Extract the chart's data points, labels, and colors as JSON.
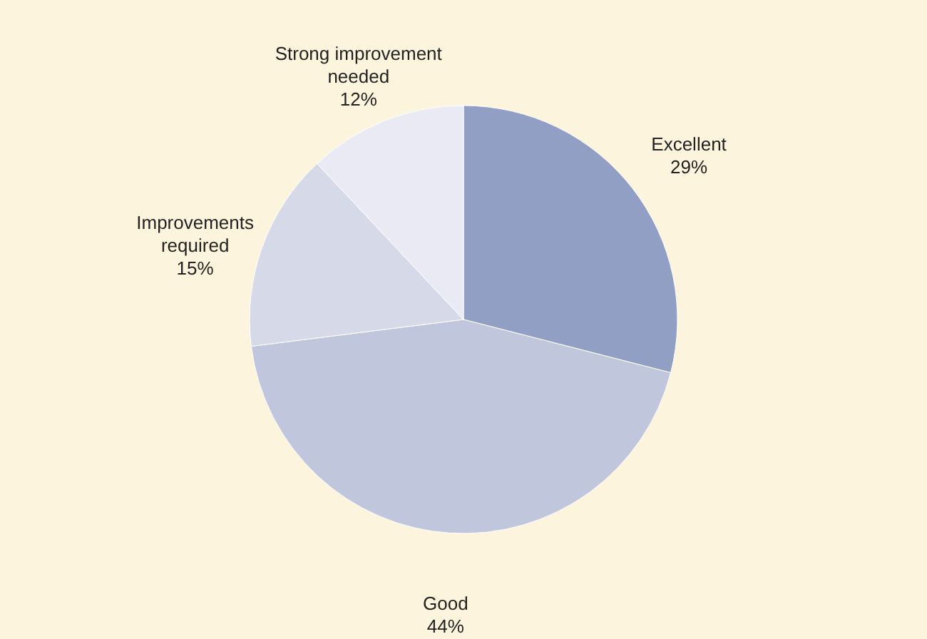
{
  "chart_data": {
    "type": "pie",
    "categories": [
      "Excellent",
      "Good",
      "Improvements required",
      "Strong improvement needed"
    ],
    "values": [
      29,
      44,
      15,
      12
    ],
    "colors": [
      "#919fc4",
      "#c0c6dc",
      "#d6dae8",
      "#e9eaf4"
    ],
    "value_labels": [
      "29%",
      "44%",
      "15%",
      "12%"
    ]
  }
}
